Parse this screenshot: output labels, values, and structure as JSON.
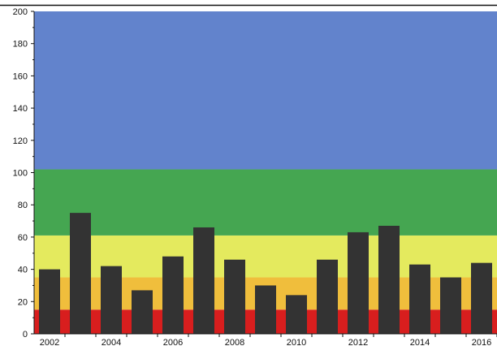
{
  "chart_data": {
    "type": "bar",
    "title": "",
    "xlabel": "",
    "ylabel": "",
    "categories": [
      "2002",
      "2003",
      "2004",
      "2005",
      "2006",
      "2007",
      "2008",
      "2009",
      "2010",
      "2011",
      "2012",
      "2013",
      "2014",
      "2015",
      "2016"
    ],
    "values": [
      40,
      75,
      42,
      27,
      48,
      66,
      46,
      30,
      24,
      46,
      63,
      67,
      43,
      35,
      44
    ],
    "x_tick_labels": [
      "2002",
      "2004",
      "2006",
      "2008",
      "2010",
      "2012",
      "2014",
      "2016"
    ],
    "y_ticks": [
      0,
      20,
      40,
      60,
      80,
      100,
      120,
      140,
      160,
      180,
      200
    ],
    "ylim": [
      0,
      200
    ],
    "grid": false,
    "bar_color": "#333333",
    "bands": [
      {
        "from": 0,
        "to": 15,
        "color": "#d81e1e"
      },
      {
        "from": 15,
        "to": 35,
        "color": "#f0be3c"
      },
      {
        "from": 35,
        "to": 61,
        "color": "#e4ea5e"
      },
      {
        "from": 61,
        "to": 102,
        "color": "#45a651"
      },
      {
        "from": 102,
        "to": 200,
        "color": "#6283cc"
      }
    ]
  }
}
